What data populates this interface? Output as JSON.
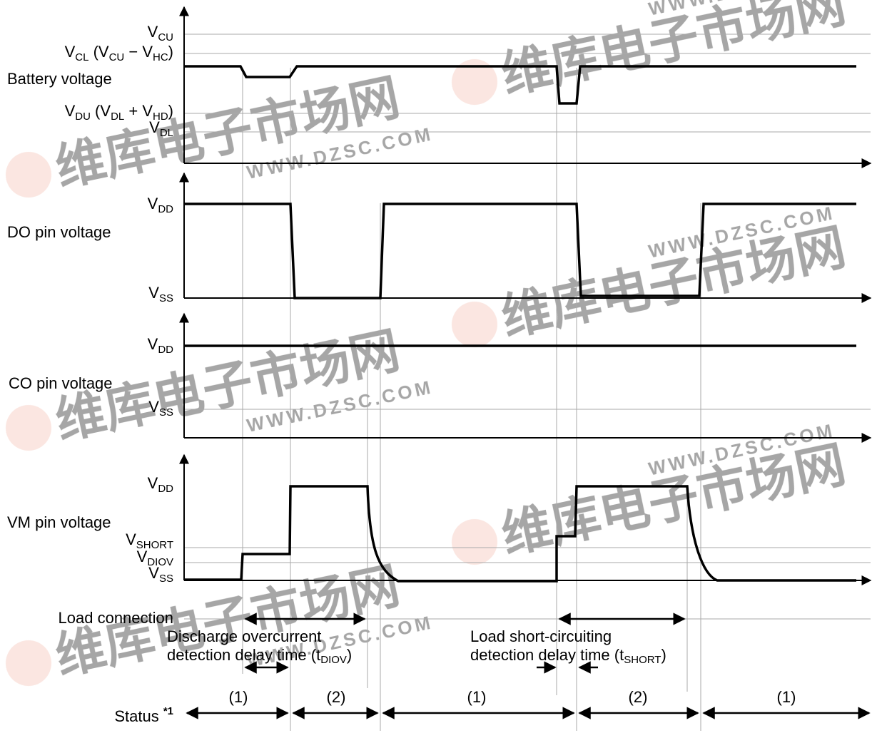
{
  "watermark": {
    "brand_glyphs": "维库电子市场网",
    "url": "WWW.DZSC.COM",
    "tm": "™",
    "color": "#f2b8a8"
  },
  "panels": {
    "battery": {
      "title": "Battery voltage",
      "levels": {
        "vcu": {
          "main": "V",
          "sub": "CU"
        },
        "vcl": {
          "t1": "V",
          "s1": "CL",
          "t2": " (V",
          "s2": "CU",
          "t3": " − V",
          "s3": "HC",
          "t4": ")"
        },
        "vdu": {
          "t1": "V",
          "s1": "DU",
          "t2": " (V",
          "s2": "DL",
          "t3": " + V",
          "s3": "HD",
          "t4": ")"
        },
        "vdl": {
          "main": "V",
          "sub": "DL"
        }
      }
    },
    "do_pin": {
      "title": "DO pin voltage",
      "levels": {
        "vdd": {
          "main": "V",
          "sub": "DD"
        },
        "vss": {
          "main": "V",
          "sub": "SS"
        }
      }
    },
    "co_pin": {
      "title": "CO pin voltage",
      "levels": {
        "vdd": {
          "main": "V",
          "sub": "DD"
        },
        "vss": {
          "main": "V",
          "sub": "SS"
        }
      }
    },
    "vm_pin": {
      "title": "VM pin voltage",
      "levels": {
        "vdd": {
          "main": "V",
          "sub": "DD"
        },
        "vshort": {
          "main": "V",
          "sub": "SHORT"
        },
        "vdiov": {
          "main": "V",
          "sub": "DIOV"
        },
        "vss": {
          "main": "V",
          "sub": "SS"
        }
      }
    }
  },
  "load_connection": "Load connection",
  "annotations": {
    "diov": {
      "line1": "Discharge overcurrent",
      "line2_prefix": "detection delay time (t",
      "line2_sub": "DIOV",
      "line2_suffix": ")"
    },
    "short": {
      "line1": "Load short-circuiting",
      "line2_prefix": "detection delay time (t",
      "line2_sub": "SHORT",
      "line2_suffix": ")"
    }
  },
  "status": {
    "label": "Status ",
    "footnote": "*1",
    "segments": [
      "(1)",
      "(2)",
      "(1)",
      "(2)",
      "(1)"
    ]
  }
}
